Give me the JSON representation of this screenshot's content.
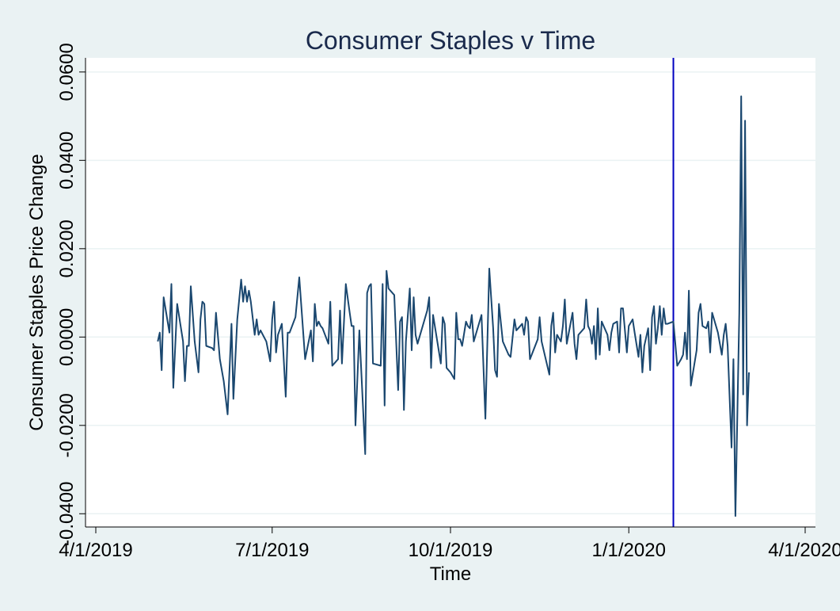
{
  "chart_data": {
    "type": "line",
    "title": "Consumer Staples v Time",
    "xlabel": "Time",
    "ylabel": "Consumer Staples Price Change",
    "x_ticks": [
      "4/1/2019",
      "7/1/2019",
      "10/1/2019",
      "1/1/2020",
      "4/1/2020"
    ],
    "y_ticks": [
      "-0.0400",
      "-0.0200",
      "0.0000",
      "0.0200",
      "0.0400",
      "0.0600"
    ],
    "xlim": [
      "2019-04-01",
      "2020-04-01"
    ],
    "ylim": [
      -0.043,
      0.0632
    ],
    "grid": "horizontal",
    "vline": {
      "x": "2020-01-24",
      "color": "#0000c0"
    },
    "colors": {
      "background": "#eaf2f3",
      "plot_background": "#ffffff",
      "line": "#1a476f",
      "grid": "#eaf2f3"
    },
    "series": [
      {
        "points": [
          [
            "2019-05-03",
            -0.001
          ],
          [
            "2019-05-04",
            0.001
          ],
          [
            "2019-05-05",
            -0.0075
          ],
          [
            "2019-05-06",
            0.009
          ],
          [
            "2019-05-09",
            0.001
          ],
          [
            "2019-05-10",
            0.012
          ],
          [
            "2019-05-11",
            -0.0115
          ],
          [
            "2019-05-13",
            0.0075
          ],
          [
            "2019-05-16",
            -0.001
          ],
          [
            "2019-05-17",
            -0.01
          ],
          [
            "2019-05-18",
            -0.002
          ],
          [
            "2019-05-19",
            -0.002
          ],
          [
            "2019-05-20",
            0.0115
          ],
          [
            "2019-05-22",
            -0.001
          ],
          [
            "2019-05-24",
            -0.008
          ],
          [
            "2019-05-25",
            0.004
          ],
          [
            "2019-05-26",
            0.008
          ],
          [
            "2019-05-27",
            0.0075
          ],
          [
            "2019-05-28",
            -0.002
          ],
          [
            "2019-05-31",
            -0.0025
          ],
          [
            "2019-06-01",
            -0.003
          ],
          [
            "2019-06-02",
            0.0055
          ],
          [
            "2019-06-04",
            -0.005
          ],
          [
            "2019-06-06",
            -0.01
          ],
          [
            "2019-06-08",
            -0.0175
          ],
          [
            "2019-06-10",
            0.003
          ],
          [
            "2019-06-11",
            -0.014
          ],
          [
            "2019-06-13",
            0.004
          ],
          [
            "2019-06-15",
            0.013
          ],
          [
            "2019-06-16",
            0.008
          ],
          [
            "2019-06-17",
            0.0115
          ],
          [
            "2019-06-18",
            0.008
          ],
          [
            "2019-06-19",
            0.0105
          ],
          [
            "2019-06-20",
            0.008
          ],
          [
            "2019-06-22",
            0.0005
          ],
          [
            "2019-06-23",
            0.004
          ],
          [
            "2019-06-24",
            0.0005
          ],
          [
            "2019-06-25",
            0.0015
          ],
          [
            "2019-06-28",
            -0.001
          ],
          [
            "2019-06-30",
            -0.0055
          ],
          [
            "2019-07-01",
            0.004
          ],
          [
            "2019-07-02",
            0.008
          ],
          [
            "2019-07-03",
            -0.0035
          ],
          [
            "2019-07-04",
            0.0005
          ],
          [
            "2019-07-06",
            0.003
          ],
          [
            "2019-07-08",
            -0.0135
          ],
          [
            "2019-07-09",
            0.001
          ],
          [
            "2019-07-10",
            0.001
          ],
          [
            "2019-07-13",
            0.0045
          ],
          [
            "2019-07-15",
            0.0135
          ],
          [
            "2019-07-18",
            -0.005
          ],
          [
            "2019-07-21",
            0.0015
          ],
          [
            "2019-07-22",
            -0.0055
          ],
          [
            "2019-07-23",
            0.0075
          ],
          [
            "2019-07-24",
            0.0025
          ],
          [
            "2019-07-25",
            0.0035
          ],
          [
            "2019-07-26",
            0.0025
          ],
          [
            "2019-07-27",
            0.002
          ],
          [
            "2019-07-30",
            -0.0015
          ],
          [
            "2019-07-31",
            0.008
          ],
          [
            "2019-08-01",
            -0.0065
          ],
          [
            "2019-08-04",
            -0.005
          ],
          [
            "2019-08-05",
            0.006
          ],
          [
            "2019-08-06",
            -0.006
          ],
          [
            "2019-08-08",
            0.012
          ],
          [
            "2019-08-10",
            0.0055
          ],
          [
            "2019-08-11",
            0.0025
          ],
          [
            "2019-08-12",
            0.0025
          ],
          [
            "2019-08-13",
            -0.02
          ],
          [
            "2019-08-15",
            0.0015
          ],
          [
            "2019-08-18",
            -0.0265
          ],
          [
            "2019-08-19",
            0.01
          ],
          [
            "2019-08-20",
            0.0115
          ],
          [
            "2019-08-21",
            0.012
          ],
          [
            "2019-08-22",
            -0.006
          ],
          [
            "2019-08-26",
            -0.0065
          ],
          [
            "2019-08-27",
            0.012
          ],
          [
            "2019-08-28",
            -0.0155
          ],
          [
            "2019-08-29",
            0.015
          ],
          [
            "2019-08-30",
            0.011
          ],
          [
            "2019-09-02",
            0.0095
          ],
          [
            "2019-09-04",
            -0.012
          ],
          [
            "2019-09-05",
            0.0035
          ],
          [
            "2019-09-06",
            0.0045
          ],
          [
            "2019-09-07",
            -0.0165
          ],
          [
            "2019-09-08",
            -0.001
          ],
          [
            "2019-09-10",
            0.011
          ],
          [
            "2019-09-11",
            -0.003
          ],
          [
            "2019-09-12",
            0.009
          ],
          [
            "2019-09-13",
            0.0005
          ],
          [
            "2019-09-14",
            -0.0015
          ],
          [
            "2019-09-19",
            0.006
          ],
          [
            "2019-09-20",
            0.009
          ],
          [
            "2019-09-21",
            -0.007
          ],
          [
            "2019-09-22",
            0.005
          ],
          [
            "2019-09-26",
            -0.006
          ],
          [
            "2019-09-27",
            0.0045
          ],
          [
            "2019-09-28",
            0.003
          ],
          [
            "2019-09-29",
            -0.007
          ],
          [
            "2019-10-01",
            -0.008
          ],
          [
            "2019-10-03",
            -0.0095
          ],
          [
            "2019-10-04",
            0.0055
          ],
          [
            "2019-10-05",
            -0.0005
          ],
          [
            "2019-10-06",
            -0.0005
          ],
          [
            "2019-10-07",
            -0.002
          ],
          [
            "2019-10-09",
            0.0035
          ],
          [
            "2019-10-10",
            0.0025
          ],
          [
            "2019-10-11",
            0.002
          ],
          [
            "2019-10-12",
            0.005
          ],
          [
            "2019-10-13",
            -0.001
          ],
          [
            "2019-10-17",
            0.005
          ],
          [
            "2019-10-19",
            -0.0185
          ],
          [
            "2019-10-21",
            0.0155
          ],
          [
            "2019-10-23",
            0.002
          ],
          [
            "2019-10-24",
            -0.0075
          ],
          [
            "2019-10-25",
            -0.009
          ],
          [
            "2019-10-26",
            0.0075
          ],
          [
            "2019-10-28",
            -0.001
          ],
          [
            "2019-10-31",
            -0.004
          ],
          [
            "2019-11-01",
            -0.0045
          ],
          [
            "2019-11-03",
            0.004
          ],
          [
            "2019-11-04",
            0.0015
          ],
          [
            "2019-11-06",
            0.0025
          ],
          [
            "2019-11-07",
            0.003
          ],
          [
            "2019-11-08",
            0.0005
          ],
          [
            "2019-11-09",
            0.0045
          ],
          [
            "2019-11-10",
            0.0035
          ],
          [
            "2019-11-11",
            -0.005
          ],
          [
            "2019-11-15",
            -0.0005
          ],
          [
            "2019-11-16",
            0.0045
          ],
          [
            "2019-11-17",
            -0.001
          ],
          [
            "2019-11-21",
            -0.0085
          ],
          [
            "2019-11-22",
            0.0025
          ],
          [
            "2019-11-23",
            0.0055
          ],
          [
            "2019-11-24",
            -0.0035
          ],
          [
            "2019-11-25",
            0.0005
          ],
          [
            "2019-11-27",
            -0.001
          ],
          [
            "2019-11-28",
            0.0025
          ],
          [
            "2019-11-29",
            0.0085
          ],
          [
            "2019-11-30",
            -0.0015
          ],
          [
            "2019-12-03",
            0.0055
          ],
          [
            "2019-12-04",
            -0.0015
          ],
          [
            "2019-12-05",
            -0.005
          ],
          [
            "2019-12-06",
            0.0005
          ],
          [
            "2019-12-09",
            0.002
          ],
          [
            "2019-12-10",
            0.0085
          ],
          [
            "2019-12-11",
            0.0025
          ],
          [
            "2019-12-12",
            0.0015
          ],
          [
            "2019-12-13",
            -0.0015
          ],
          [
            "2019-12-14",
            0.0025
          ],
          [
            "2019-12-15",
            -0.005
          ],
          [
            "2019-12-16",
            0.0065
          ],
          [
            "2019-12-17",
            -0.004
          ],
          [
            "2019-12-18",
            0.0035
          ],
          [
            "2019-12-21",
            0.0005
          ],
          [
            "2019-12-22",
            -0.003
          ],
          [
            "2019-12-23",
            0.001
          ],
          [
            "2019-12-24",
            0.003
          ],
          [
            "2019-12-26",
            0.0035
          ],
          [
            "2019-12-27",
            -0.0035
          ],
          [
            "2019-12-28",
            0.0065
          ],
          [
            "2019-12-29",
            0.0065
          ],
          [
            "2019-12-31",
            -0.0035
          ],
          [
            "2020-01-01",
            0.0025
          ],
          [
            "2020-01-03",
            0.004
          ],
          [
            "2020-01-04",
            0.001
          ],
          [
            "2020-01-06",
            -0.0045
          ],
          [
            "2020-01-07",
            0.0005
          ],
          [
            "2020-01-08",
            -0.008
          ],
          [
            "2020-01-09",
            -0.002
          ],
          [
            "2020-01-11",
            0.002
          ],
          [
            "2020-01-12",
            -0.0075
          ],
          [
            "2020-01-13",
            0.0045
          ],
          [
            "2020-01-14",
            0.007
          ],
          [
            "2020-01-15",
            -0.0015
          ],
          [
            "2020-01-16",
            0.002
          ],
          [
            "2020-01-17",
            0.007
          ],
          [
            "2020-01-18",
            0.0005
          ],
          [
            "2020-01-19",
            0.0065
          ],
          [
            "2020-01-20",
            0.003
          ],
          [
            "2020-01-21",
            0.003
          ],
          [
            "2020-01-24",
            0.0035
          ],
          [
            "2020-01-25",
            -0.0015
          ],
          [
            "2020-01-26",
            -0.0065
          ],
          [
            "2020-01-28",
            -0.005
          ],
          [
            "2020-01-29",
            -0.004
          ],
          [
            "2020-01-30",
            0.001
          ],
          [
            "2020-01-31",
            -0.005
          ],
          [
            "2020-02-01",
            0.0105
          ],
          [
            "2020-02-02",
            -0.011
          ],
          [
            "2020-02-05",
            -0.003
          ],
          [
            "2020-02-06",
            0.0055
          ],
          [
            "2020-02-07",
            0.0075
          ],
          [
            "2020-02-08",
            0.0025
          ],
          [
            "2020-02-10",
            0.002
          ],
          [
            "2020-02-11",
            0.0035
          ],
          [
            "2020-02-12",
            -0.0035
          ],
          [
            "2020-02-13",
            0.0055
          ],
          [
            "2020-02-16",
            0.001
          ],
          [
            "2020-02-18",
            -0.004
          ],
          [
            "2020-02-19",
            0.0005
          ],
          [
            "2020-02-20",
            0.003
          ],
          [
            "2020-02-21",
            -0.002
          ],
          [
            "2020-02-23",
            -0.025
          ],
          [
            "2020-02-24",
            -0.005
          ],
          [
            "2020-02-25",
            -0.0405
          ],
          [
            "2020-02-27",
            0.0055
          ],
          [
            "2020-02-28",
            0.0545
          ],
          [
            "2020-02-29",
            -0.013
          ],
          [
            "2020-03-01",
            0.049
          ],
          [
            "2020-03-02",
            -0.02
          ],
          [
            "2020-03-03",
            -0.008
          ]
        ]
      }
    ]
  }
}
